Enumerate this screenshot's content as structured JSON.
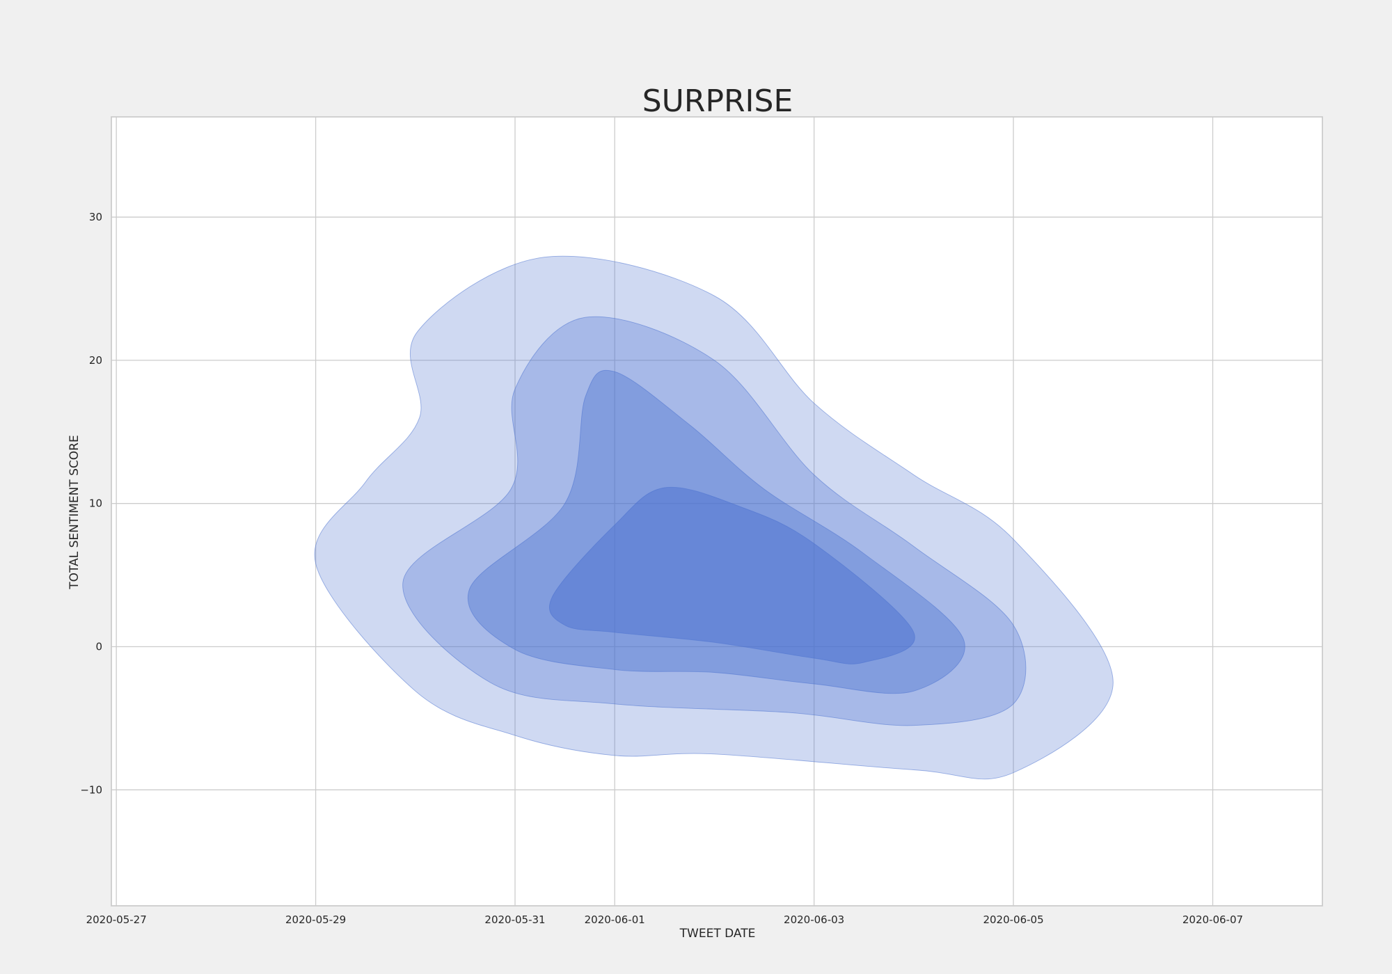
{
  "chart_data": {
    "type": "kde",
    "title": "SURPRISE",
    "xlabel": "TWEET DATE",
    "ylabel": "TOTAL SENTIMENT SCORE",
    "x_ticks": [
      "2020-05-27",
      "2020-05-29",
      "2020-05-31",
      "2020-06-01",
      "2020-06-03",
      "2020-06-05",
      "2020-06-07"
    ],
    "y_ticks": [
      -10,
      0,
      10,
      20,
      30
    ],
    "xlim": [
      "2020-05-26T22:48",
      "2020-06-08T02:24"
    ],
    "ylim": [
      -18.1,
      37.0
    ],
    "grid": true,
    "fill_color": "#4c72d0",
    "levels": [
      {
        "level": 1,
        "fill_opacity": 0.27,
        "points": [
          [
            "2020-05-29T00:00",
            5.8
          ],
          [
            "2020-05-29T12:00",
            11.5
          ],
          [
            "2020-05-30T01:00",
            16
          ],
          [
            "2020-05-30T00:30",
            22
          ],
          [
            "2020-05-31T07:00",
            27.2
          ],
          [
            "2020-06-02T00:00",
            24.5
          ],
          [
            "2020-06-03T00:00",
            17
          ],
          [
            "2020-06-04T00:00",
            12
          ],
          [
            "2020-06-05T00:00",
            7.5
          ],
          [
            "2020-06-06T00:00",
            -2.5
          ],
          [
            "2020-06-05T00:00",
            -8.8
          ],
          [
            "2020-06-04T00:00",
            -8.6
          ],
          [
            "2020-06-02T00:00",
            -7.5
          ],
          [
            "2020-06-01T00:00",
            -7.6
          ],
          [
            "2020-05-31T00:00",
            -6.2
          ],
          [
            "2020-05-30T00:00",
            -3.1
          ]
        ]
      },
      {
        "level": 2,
        "fill_opacity": 0.3,
        "points": [
          [
            "2020-05-29T21:00",
            4.5
          ],
          [
            "2020-05-30T23:00",
            11
          ],
          [
            "2020-05-31T00:00",
            18
          ],
          [
            "2020-05-31T17:00",
            23
          ],
          [
            "2020-06-02T00:00",
            20
          ],
          [
            "2020-06-03T00:00",
            12
          ],
          [
            "2020-06-04T00:00",
            7
          ],
          [
            "2020-06-05T00:00",
            1.5
          ],
          [
            "2020-06-05T00:00",
            -4
          ],
          [
            "2020-06-04T00:00",
            -5.5
          ],
          [
            "2020-06-02T18:00",
            -4.6
          ],
          [
            "2020-06-01T00:00",
            -4
          ],
          [
            "2020-05-30T18:00",
            -2.5
          ]
        ]
      },
      {
        "level": 3,
        "fill_opacity": 0.4,
        "points": [
          [
            "2020-05-30T13:00",
            4
          ],
          [
            "2020-05-31T12:00",
            10
          ],
          [
            "2020-05-31T17:00",
            17.5
          ],
          [
            "2020-06-01T00:00",
            19.2
          ],
          [
            "2020-06-01T18:00",
            15.5
          ],
          [
            "2020-06-02T12:00",
            11
          ],
          [
            "2020-06-03T12:00",
            6.5
          ],
          [
            "2020-06-04T12:00",
            0.5
          ],
          [
            "2020-06-04T00:00",
            -3.1
          ],
          [
            "2020-06-03T00:00",
            -2.6
          ],
          [
            "2020-06-02T00:00",
            -1.8
          ],
          [
            "2020-06-01T00:00",
            -1.6
          ],
          [
            "2020-05-31T00:00",
            -0.2
          ]
        ]
      },
      {
        "level": 4,
        "fill_opacity": 0.5,
        "points": [
          [
            "2020-05-31T09:00",
            3.5
          ],
          [
            "2020-06-01T00:00",
            8.5
          ],
          [
            "2020-06-01T12:00",
            11.1
          ],
          [
            "2020-06-02T06:00",
            9.8
          ],
          [
            "2020-06-03T00:00",
            7.2
          ],
          [
            "2020-06-04T00:00",
            1
          ],
          [
            "2020-06-03T12:00",
            -1.1
          ],
          [
            "2020-06-03T00:00",
            -0.8
          ],
          [
            "2020-06-02T00:00",
            0.3
          ],
          [
            "2020-06-01T00:00",
            1
          ],
          [
            "2020-05-31T12:00",
            1.5
          ]
        ]
      }
    ]
  }
}
